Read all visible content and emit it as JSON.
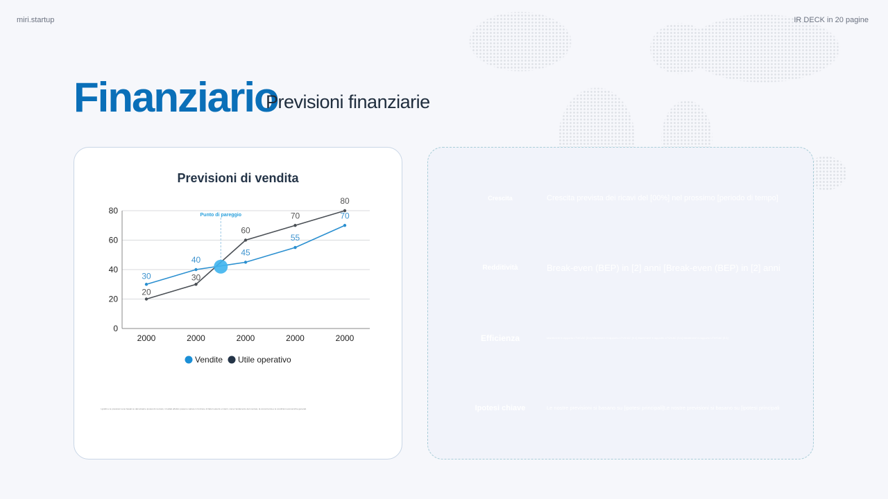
{
  "header": {
    "brand": "miri.startup",
    "page_info": "IR DECK in 20 pagine"
  },
  "title": "Finanziario",
  "subtitle": "Previsioni finanziarie",
  "chart_card": {
    "note": "I grafici e le previsioni sono basati su dati attuali e ipotesi di mercato; i risultati effettivi possono variare in funzione di fattori esterni e interni, come l'andamento del mercato, la concorrenza e le condizioni economiche generali."
  },
  "chart_data": {
    "type": "line",
    "title": "Previsioni di vendita",
    "categories": [
      "2000",
      "2000",
      "2000",
      "2000",
      "2000"
    ],
    "ylim": [
      0,
      80
    ],
    "yticks": [
      0,
      20,
      40,
      60,
      80
    ],
    "grid": true,
    "legend": "bottom",
    "series": [
      {
        "name": "Vendite",
        "color": "#2a8fd0",
        "values": [
          30,
          40,
          45,
          55,
          70
        ]
      },
      {
        "name": "Utile operativo",
        "color": "#4a4f55",
        "values": [
          20,
          30,
          60,
          70,
          80
        ]
      }
    ],
    "annotation": {
      "label": "Punto di pareggio",
      "x_between": [
        2,
        3
      ],
      "y": 42
    }
  },
  "rows": [
    {
      "label": "Crescita",
      "text": "Crescita prevista dei ricavi del [00%] nel prossimo [periodo di tempo]",
      "style": "blue"
    },
    {
      "label": "Redditività",
      "text": "Break-even (BEP) in [2] anni [Break-even (BEP) in [2] anni",
      "style": "dark"
    },
    {
      "label": "Efficienza",
      "text": "Mantenere il rapporto LTV/CAC [3:1] Mantenere il rapporto LTV/CAC [3:1] Mantenere il rapporto LTV/CAC [3:1] Mantenere il rapporto LTV/CAC [3:1]",
      "style": "blue"
    },
    {
      "label": "Ipotesi chiave",
      "text": "Le nostre previsioni si basano su [ipotesi principali]Le nostre previsioni si basano su [ipotesi principali",
      "style": "dark"
    }
  ]
}
